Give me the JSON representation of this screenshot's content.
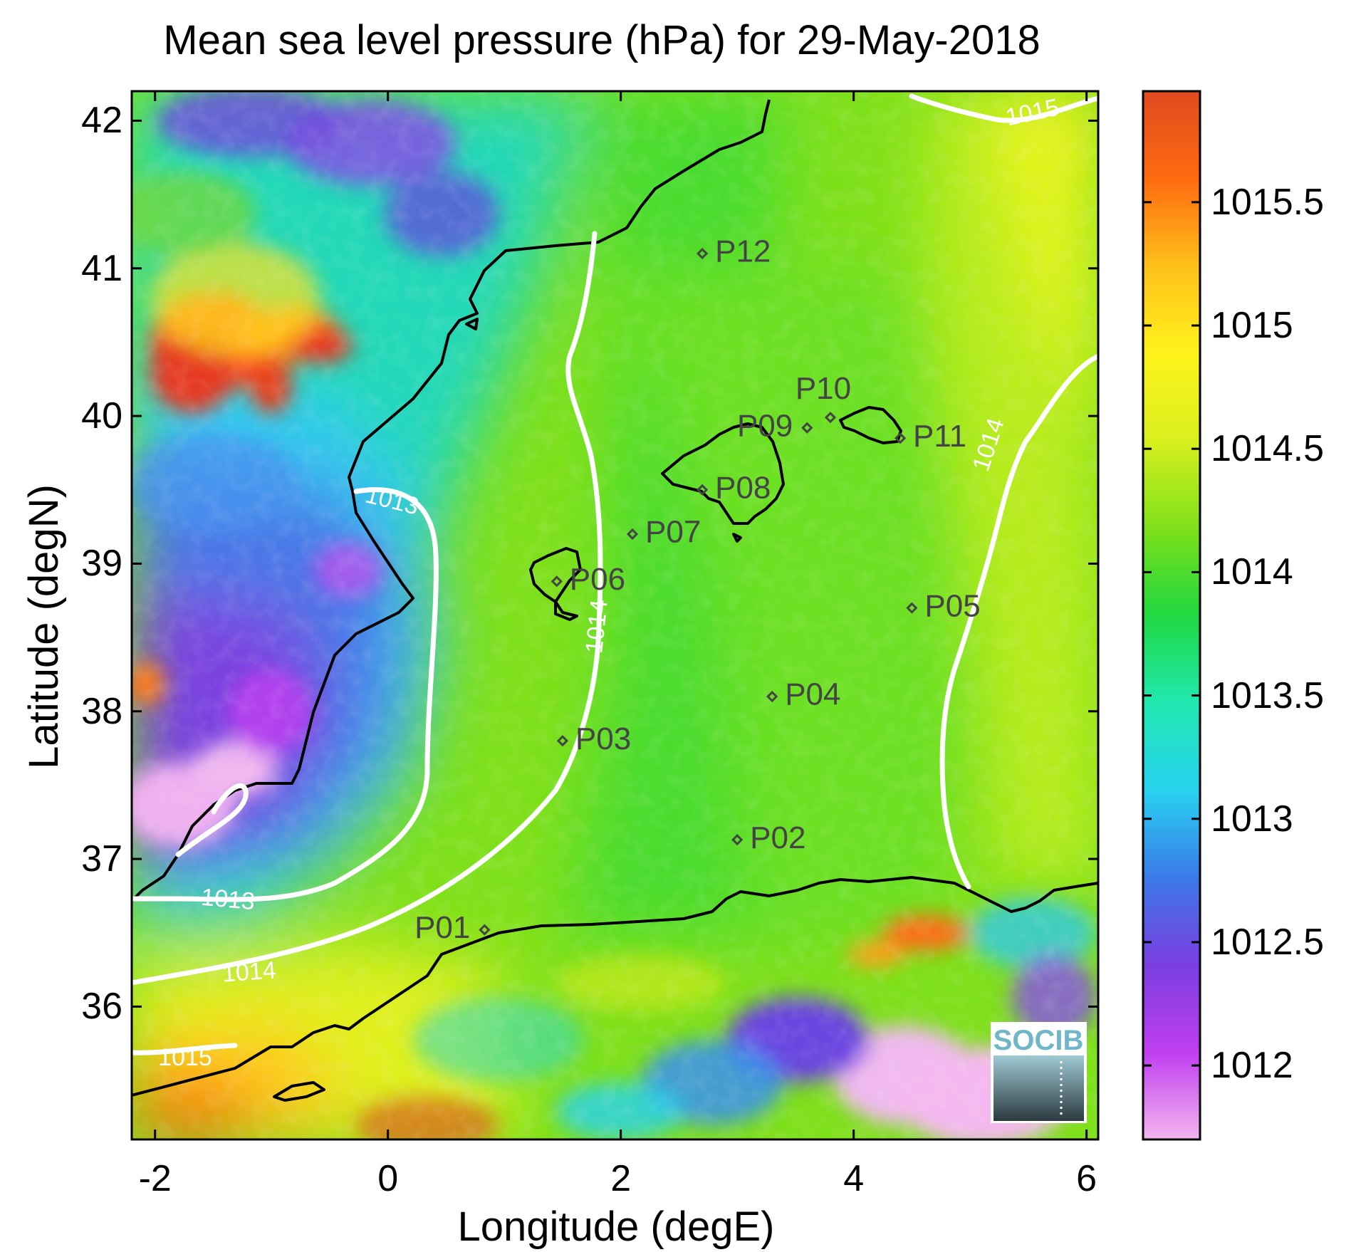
{
  "title": "Mean sea level pressure (hPa) for 29-May-2018",
  "xlabel": "Longitude (degE)",
  "ylabel": "Latitude (degN)",
  "x_ticks": [
    "-2",
    "0",
    "2",
    "4",
    "6"
  ],
  "y_ticks": [
    "42",
    "41",
    "40",
    "39",
    "38",
    "37",
    "36"
  ],
  "colorbar": {
    "ticks": [
      "1015.5",
      "1015",
      "1014.5",
      "1014",
      "1013.5",
      "1013",
      "1012.5",
      "1012"
    ],
    "range": [
      1011.7,
      1015.95
    ],
    "colors": [
      "#f4b6f0",
      "#c03ef0",
      "#7a3ee0",
      "#3a7ae8",
      "#28d2f0",
      "#20e8b0",
      "#20d840",
      "#7ee01a",
      "#d8f01e",
      "#fff21c",
      "#ffc01a",
      "#ff6a10",
      "#e04a20"
    ]
  },
  "map": {
    "lon_range": [
      -2.2,
      6.1
    ],
    "lat_range": [
      35.1,
      42.2
    ],
    "contour_labels": [
      "1013",
      "1013",
      "1014",
      "1014",
      "1014",
      "1015",
      "1015"
    ],
    "stations": [
      {
        "id": "P01",
        "lon": 0.83,
        "lat": 36.52
      },
      {
        "id": "P02",
        "lon": 3.0,
        "lat": 37.13
      },
      {
        "id": "P03",
        "lon": 1.5,
        "lat": 37.8
      },
      {
        "id": "P04",
        "lon": 3.3,
        "lat": 38.1
      },
      {
        "id": "P05",
        "lon": 4.5,
        "lat": 38.7
      },
      {
        "id": "P06",
        "lon": 1.45,
        "lat": 38.88
      },
      {
        "id": "P07",
        "lon": 2.1,
        "lat": 39.2
      },
      {
        "id": "P08",
        "lon": 2.7,
        "lat": 39.5
      },
      {
        "id": "P09",
        "lon": 3.6,
        "lat": 39.92
      },
      {
        "id": "P10",
        "lon": 3.8,
        "lat": 39.99
      },
      {
        "id": "P11",
        "lon": 4.4,
        "lat": 39.85
      },
      {
        "id": "P12",
        "lon": 2.7,
        "lat": 41.1
      }
    ]
  },
  "logo_text": "SOCIB"
}
